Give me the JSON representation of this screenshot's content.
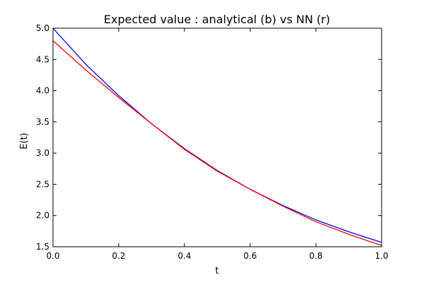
{
  "chart_data": {
    "type": "line",
    "title": "Expected value : analytical (b) vs NN (r)",
    "xlabel": "t",
    "ylabel": "E(t)",
    "xlim": [
      0.0,
      1.0
    ],
    "ylim": [
      1.5,
      5.0
    ],
    "x_ticks": [
      0.0,
      0.2,
      0.4,
      0.6,
      0.8,
      1.0
    ],
    "x_tick_labels": [
      "0.0",
      "0.2",
      "0.4",
      "0.6",
      "0.8",
      "1.0"
    ],
    "y_ticks": [
      1.5,
      2.0,
      2.5,
      3.0,
      3.5,
      4.0,
      4.5,
      5.0
    ],
    "y_tick_labels": [
      "1.5",
      "2.0",
      "2.5",
      "3.0",
      "3.5",
      "4.0",
      "4.5",
      "5.0"
    ],
    "grid": false,
    "legend": "none",
    "series": [
      {
        "color": "#0000ff",
        "x": [
          0.0,
          0.1,
          0.2,
          0.3,
          0.4,
          0.5,
          0.6,
          0.7,
          0.8,
          0.9,
          1.0
        ],
        "y": [
          5.0,
          4.42,
          3.92,
          3.47,
          3.07,
          2.72,
          2.42,
          2.16,
          1.93,
          1.74,
          1.57
        ]
      },
      {
        "color": "#ff0000",
        "x": [
          0.0,
          0.1,
          0.2,
          0.3,
          0.4,
          0.5,
          0.6,
          0.7,
          0.8,
          0.9,
          1.0
        ],
        "y": [
          4.8,
          4.33,
          3.89,
          3.47,
          3.06,
          2.71,
          2.42,
          2.15,
          1.9,
          1.7,
          1.52
        ]
      }
    ]
  }
}
